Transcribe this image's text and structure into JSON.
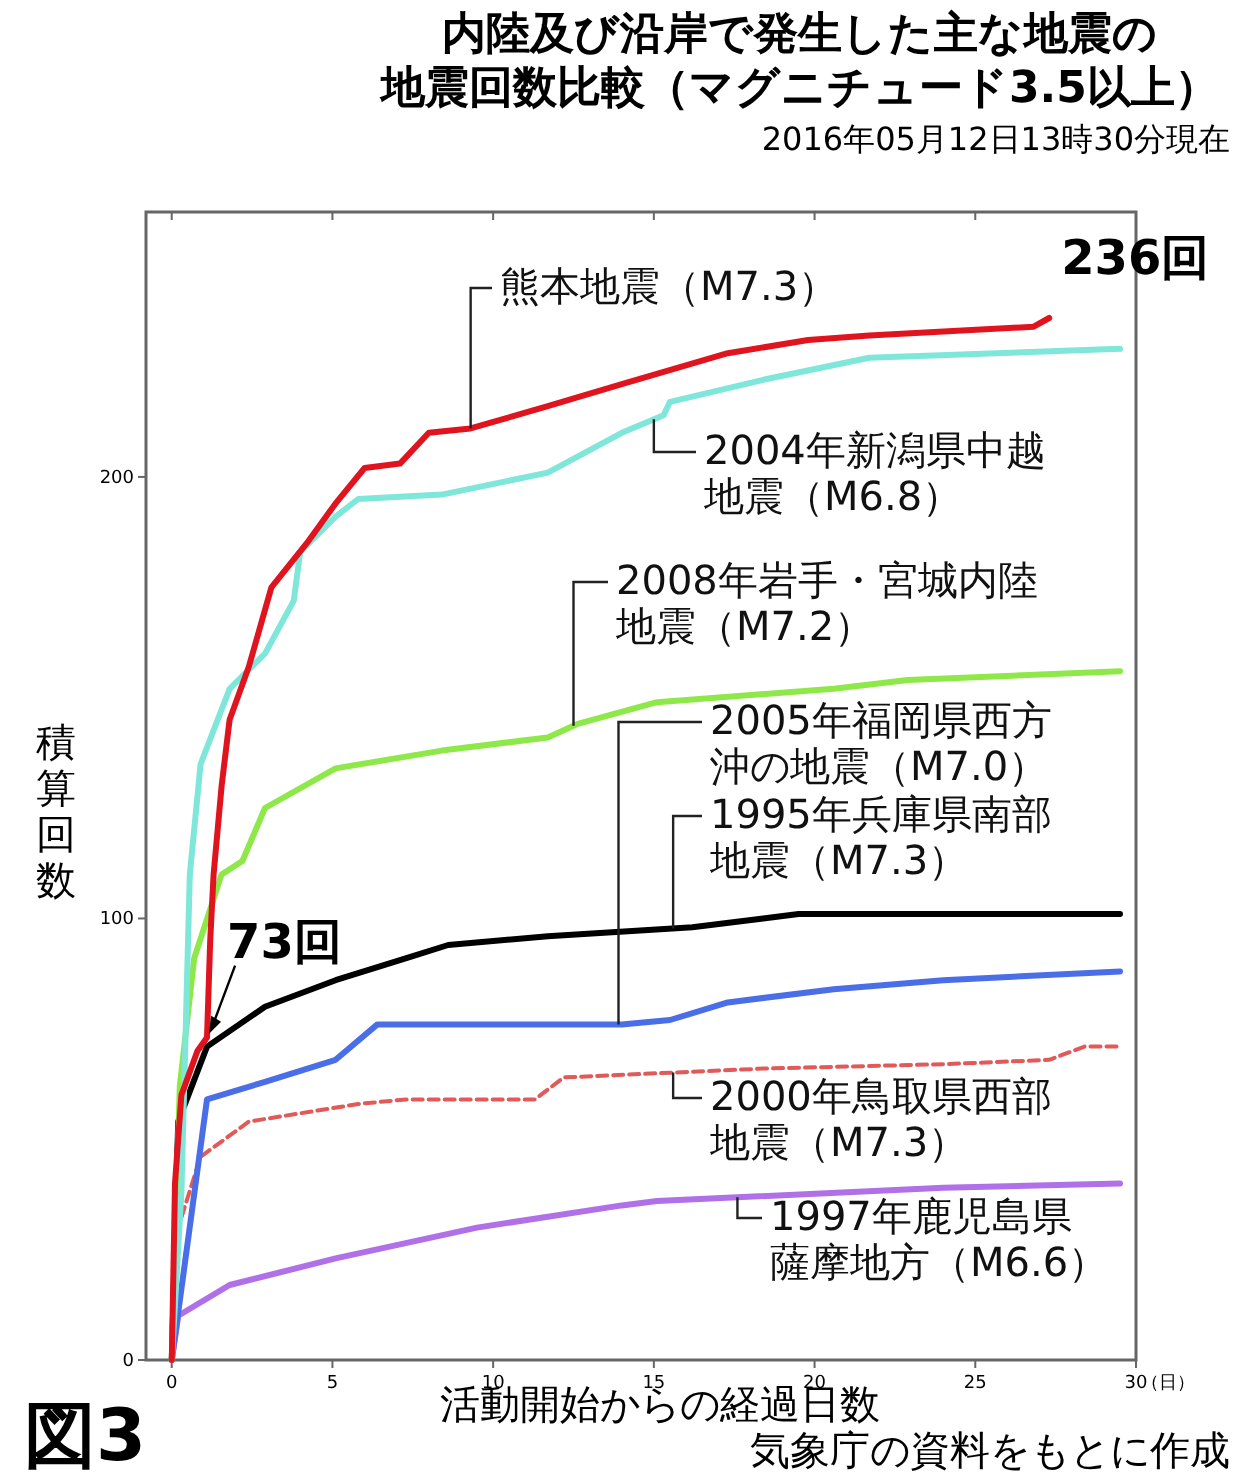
{
  "chart_data": {
    "type": "line",
    "title": "内陸及び沿岸で発生した主な地震の地震回数比較（マグニチュード3.5以上）",
    "subtitle": "2016年05月12日13時30分現在",
    "xlabel": "活動開始からの経過日数",
    "ylabel": "積算回数",
    "xlim": [
      -0.8,
      30
    ],
    "ylim": [
      0,
      260
    ],
    "xticks": [
      0,
      5,
      10,
      15,
      20,
      25,
      30
    ],
    "yticks": [
      0,
      100,
      200
    ],
    "grid": false,
    "series": [
      {
        "name": "熊本地震（M7.3）",
        "color": "#e0141e",
        "x": [
          0,
          0.1,
          0.3,
          0.8,
          1.1,
          1.2,
          1.3,
          1.55,
          1.8,
          2.4,
          3.1,
          4.2,
          5.1,
          6.0,
          7.1,
          8.0,
          9.3,
          11.7,
          14.0,
          17.3,
          19.8,
          21.7,
          26.8,
          27.3
        ],
        "values": [
          0,
          40,
          60,
          70,
          73,
          95,
          110,
          130,
          145,
          157,
          175,
          185,
          194,
          202,
          203,
          210,
          211,
          216,
          221,
          228,
          231,
          232,
          234,
          236
        ]
      },
      {
        "name": "2004年新潟県中越地震（M6.8）",
        "color": "#7fe6da",
        "x": [
          0,
          0.3,
          0.56,
          0.9,
          1.8,
          2.9,
          3.8,
          4.0,
          5.1,
          5.8,
          8.4,
          11.7,
          14.0,
          15.3,
          15.5,
          18.4,
          21.7,
          29.5
        ],
        "values": [
          0,
          38,
          110,
          135,
          152,
          160,
          172,
          183,
          191,
          195,
          196,
          201,
          210,
          214,
          217,
          222,
          227,
          229
        ]
      },
      {
        "name": "2008年岩手・宮城内陸地震（M7.2）",
        "color": "#8ee84a",
        "x": [
          0,
          0.25,
          0.7,
          1.55,
          2.2,
          2.9,
          5.1,
          8.4,
          11.7,
          12.6,
          15.1,
          20.6,
          22.9,
          29.5
        ],
        "values": [
          0,
          62,
          91,
          110,
          113,
          125,
          134,
          138,
          141,
          144,
          149,
          152,
          154,
          156
        ]
      },
      {
        "name": "1995年兵庫県南部地震（M7.3）",
        "color": "#000000",
        "x": [
          0,
          0.2,
          1.1,
          2.9,
          5.1,
          7.3,
          8.6,
          11.7,
          16.2,
          18.4,
          19.5,
          29.5
        ],
        "values": [
          0,
          54,
          71,
          80,
          86,
          91,
          94,
          96,
          98,
          100,
          101,
          101
        ]
      },
      {
        "name": "2005年福岡県西方沖の地震（M7.0）",
        "color": "#4a6ee8",
        "x": [
          0,
          1.1,
          2.9,
          5.1,
          6.4,
          9.3,
          14.0,
          15.5,
          17.3,
          20.6,
          24.0,
          29.5
        ],
        "values": [
          0,
          59,
          63,
          68,
          76,
          76,
          76,
          77,
          81,
          84,
          86,
          88
        ]
      },
      {
        "name": "2000年鳥取県西部地震（M7.3）",
        "color": "#e05a5a",
        "line_style": "dashed",
        "x": [
          0,
          0.2,
          0.9,
          2.4,
          5.8,
          7.3,
          11.3,
          12.2,
          18.4,
          24.0,
          27.3,
          28.4,
          29.5
        ],
        "values": [
          0,
          30,
          46,
          54,
          58,
          59,
          59,
          64,
          66,
          67,
          68,
          71,
          71
        ]
      },
      {
        "name": "1997年鹿児島県薩摩地方（M6.6）",
        "color": "#b070e8",
        "x": [
          0,
          0.2,
          1.8,
          5.1,
          9.5,
          14.0,
          15.1,
          24.0,
          29.5
        ],
        "values": [
          0,
          10,
          17,
          23,
          30,
          35,
          36,
          39,
          40
        ]
      }
    ],
    "annotations": [
      {
        "text": "236回",
        "x": 27.3,
        "y": 236
      },
      {
        "text": "73回",
        "x": 1.1,
        "y": 73
      },
      "（日）",
      "図3",
      "気象庁の資料をもとに作成"
    ]
  }
}
